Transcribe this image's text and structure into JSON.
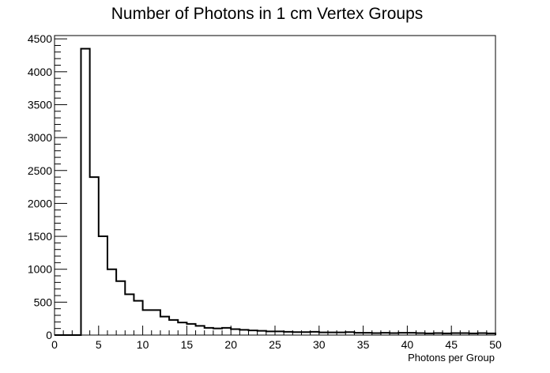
{
  "chart_data": {
    "type": "bar",
    "title": "Number of Photons in 1 cm Vertex Groups",
    "xlabel": "Photons per Group",
    "ylabel": "",
    "xlim": [
      0,
      50
    ],
    "ylim": [
      0,
      4550
    ],
    "x_ticks": [
      0,
      5,
      10,
      15,
      20,
      25,
      30,
      35,
      40,
      45,
      50
    ],
    "y_ticks": [
      0,
      500,
      1000,
      1500,
      2000,
      2500,
      3000,
      3500,
      4000,
      4500
    ],
    "grid": false,
    "legend": "none",
    "bin_width": 1,
    "bin_edges_start": 0,
    "values": [
      0,
      0,
      0,
      4350,
      2400,
      1500,
      1000,
      820,
      620,
      520,
      380,
      380,
      280,
      230,
      190,
      170,
      140,
      110,
      100,
      110,
      90,
      80,
      70,
      65,
      55,
      55,
      50,
      45,
      45,
      50,
      40,
      40,
      40,
      45,
      35,
      35,
      30,
      35,
      30,
      35,
      35,
      30,
      25,
      30,
      25,
      30,
      30,
      25,
      30,
      25
    ],
    "line_color": "#000000"
  }
}
